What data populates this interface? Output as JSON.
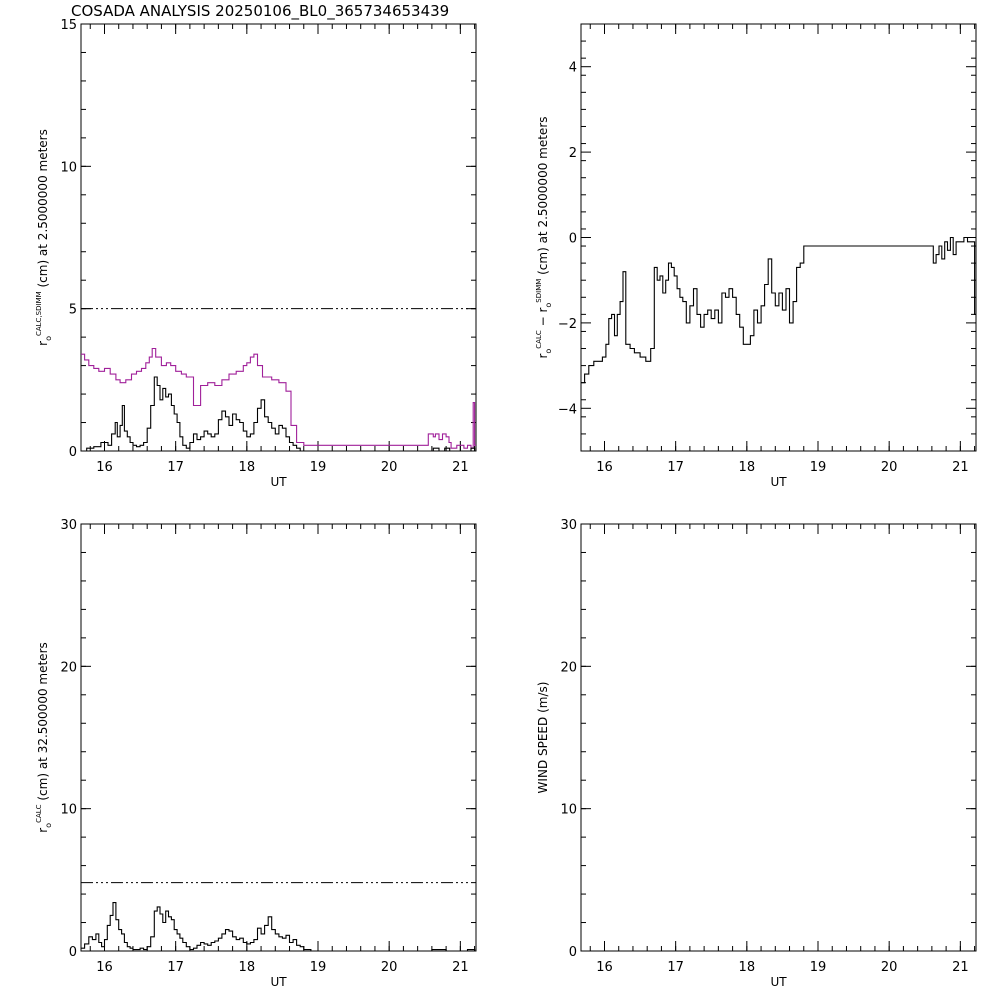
{
  "title": "COSADA ANALYSIS 20250106_BL0_365734653439",
  "colors": {
    "axis": "#000000",
    "series_calc": "#000000",
    "series_sdimm": "#a0209a"
  },
  "chart_data": [
    {
      "id": "p1",
      "type": "line",
      "xlabel": "UT",
      "ylabel": {
        "prefix": "r",
        "sub": "o",
        "sup": "CALC,SDIMM",
        "rest": " (cm)  at  2.5000000 meters"
      },
      "xlim": [
        15.67,
        21.22
      ],
      "ylim": [
        0,
        15
      ],
      "xticks": [
        "16",
        "17",
        "18",
        "19",
        "20",
        "21"
      ],
      "yticks": [
        "0",
        "5",
        "10",
        "15"
      ],
      "threshold": 5,
      "series": [
        {
          "color": "#a0209a",
          "step": true,
          "x": [
            15.67,
            15.72,
            15.78,
            15.85,
            15.92,
            16.0,
            16.08,
            16.16,
            16.22,
            16.3,
            16.38,
            16.45,
            16.52,
            16.58,
            16.63,
            16.67,
            16.72,
            16.8,
            16.87,
            16.93,
            17.0,
            17.08,
            17.15,
            17.25,
            17.35,
            17.45,
            17.55,
            17.65,
            17.75,
            17.85,
            17.95,
            18.0,
            18.05,
            18.1,
            18.15,
            18.22,
            18.35,
            18.45,
            18.55,
            18.62,
            18.7,
            18.8,
            19.0,
            20.0,
            20.55,
            20.62,
            20.65,
            20.7,
            20.75,
            20.8,
            20.84,
            20.87,
            20.95,
            21.05,
            21.1,
            21.15,
            21.18,
            21.2
          ],
          "y": [
            3.4,
            3.2,
            3.0,
            2.9,
            2.8,
            2.9,
            2.7,
            2.5,
            2.4,
            2.5,
            2.7,
            2.8,
            2.9,
            3.1,
            3.3,
            3.6,
            3.3,
            3.0,
            3.1,
            3.0,
            2.8,
            2.7,
            2.6,
            1.6,
            2.3,
            2.4,
            2.3,
            2.5,
            2.7,
            2.8,
            3.0,
            3.1,
            3.3,
            3.4,
            3.0,
            2.6,
            2.5,
            2.4,
            2.1,
            0.9,
            0.3,
            0.2,
            0.2,
            0.2,
            0.6,
            0.5,
            0.6,
            0.4,
            0.6,
            0.5,
            0.3,
            0.1,
            0.2,
            0.1,
            0.2,
            0.1,
            1.7,
            0.2
          ]
        },
        {
          "color": "#000000",
          "step": true,
          "x": [
            15.67,
            15.75,
            15.85,
            15.95,
            16.05,
            16.1,
            16.15,
            16.18,
            16.22,
            16.25,
            16.28,
            16.32,
            16.36,
            16.4,
            16.45,
            16.5,
            16.55,
            16.6,
            16.65,
            16.7,
            16.74,
            16.78,
            16.82,
            16.86,
            16.9,
            16.94,
            16.98,
            17.02,
            17.06,
            17.1,
            17.15,
            17.2,
            17.25,
            17.3,
            17.35,
            17.4,
            17.45,
            17.5,
            17.55,
            17.6,
            17.65,
            17.7,
            17.75,
            17.8,
            17.85,
            17.9,
            17.95,
            18.0,
            18.05,
            18.1,
            18.15,
            18.2,
            18.25,
            18.3,
            18.35,
            18.4,
            18.45,
            18.5,
            18.55,
            18.6,
            18.65,
            18.7,
            18.75,
            18.8,
            18.9,
            19.0,
            20.0,
            20.55,
            20.62,
            20.7,
            20.78,
            20.85,
            20.92,
            21.0,
            21.08,
            21.15,
            21.2
          ],
          "y": [
            0.0,
            0.1,
            0.15,
            0.3,
            0.2,
            0.6,
            1.0,
            0.5,
            0.9,
            1.6,
            0.7,
            0.5,
            0.3,
            0.2,
            0.15,
            0.2,
            0.3,
            0.8,
            1.6,
            2.6,
            2.3,
            1.8,
            2.2,
            1.9,
            2.0,
            1.6,
            1.3,
            1.0,
            0.5,
            0.2,
            0.1,
            0.3,
            0.6,
            0.4,
            0.5,
            0.7,
            0.6,
            0.5,
            0.6,
            1.1,
            1.4,
            1.2,
            0.9,
            1.3,
            1.1,
            1.0,
            0.7,
            0.5,
            0.6,
            1.0,
            1.5,
            1.8,
            1.2,
            1.0,
            0.8,
            0.6,
            0.9,
            0.8,
            0.5,
            0.3,
            0.2,
            0.1,
            0.0,
            0.0,
            0.0,
            0.0,
            0.0,
            0.0,
            0.1,
            0.0,
            0.1,
            0.0,
            0.0,
            0.0,
            0.0,
            0.1,
            0.0
          ]
        }
      ]
    },
    {
      "id": "p2",
      "type": "line",
      "xlabel": "UT",
      "ylabel": {
        "prefix": "r",
        "sub": "o",
        "sup": "CALC",
        "rest": "  − r",
        "sub2": "o",
        "sup2": "SDIMM",
        "rest2": " (cm) at 2.5000000 meters"
      },
      "xlim": [
        15.67,
        21.22
      ],
      "ylim": [
        -5,
        5
      ],
      "xticks": [
        "16",
        "17",
        "18",
        "19",
        "20",
        "21"
      ],
      "yticks": [
        "−4",
        "−2",
        "0",
        "2",
        "4"
      ],
      "ytick_values": [
        -4,
        -2,
        0,
        2,
        4
      ],
      "series": [
        {
          "color": "#000000",
          "step": true,
          "x": [
            15.67,
            15.72,
            15.78,
            15.85,
            15.92,
            15.97,
            16.02,
            16.06,
            16.1,
            16.14,
            16.18,
            16.22,
            16.26,
            16.3,
            16.36,
            16.42,
            16.5,
            16.58,
            16.65,
            16.7,
            16.74,
            16.78,
            16.82,
            16.86,
            16.9,
            16.94,
            16.98,
            17.02,
            17.06,
            17.1,
            17.15,
            17.2,
            17.25,
            17.3,
            17.35,
            17.4,
            17.45,
            17.5,
            17.55,
            17.6,
            17.65,
            17.7,
            17.75,
            17.8,
            17.85,
            17.9,
            17.95,
            18.0,
            18.05,
            18.1,
            18.15,
            18.2,
            18.25,
            18.3,
            18.35,
            18.4,
            18.45,
            18.5,
            18.55,
            18.6,
            18.65,
            18.7,
            18.75,
            18.8,
            18.9,
            19.0,
            20.0,
            20.3,
            20.55,
            20.62,
            20.66,
            20.7,
            20.74,
            20.78,
            20.82,
            20.86,
            20.9,
            20.94,
            21.0,
            21.05,
            21.1,
            21.15,
            21.2
          ],
          "y": [
            -3.4,
            -3.2,
            -3.0,
            -2.9,
            -2.9,
            -2.8,
            -2.5,
            -1.9,
            -1.8,
            -2.3,
            -1.8,
            -1.5,
            -0.8,
            -2.5,
            -2.6,
            -2.7,
            -2.8,
            -2.9,
            -2.6,
            -0.7,
            -1.0,
            -0.9,
            -1.3,
            -1.0,
            -0.6,
            -0.7,
            -0.9,
            -1.2,
            -1.4,
            -1.5,
            -2.0,
            -1.6,
            -1.2,
            -1.8,
            -2.1,
            -1.8,
            -1.7,
            -1.9,
            -1.7,
            -2.0,
            -1.3,
            -1.4,
            -1.2,
            -1.4,
            -1.8,
            -2.1,
            -2.5,
            -2.5,
            -2.3,
            -1.7,
            -2.0,
            -1.6,
            -1.1,
            -0.5,
            -1.3,
            -1.6,
            -1.3,
            -1.7,
            -1.2,
            -2.0,
            -1.5,
            -0.7,
            -0.6,
            -0.2,
            -0.2,
            -0.2,
            -0.2,
            -0.2,
            -0.2,
            -0.6,
            -0.4,
            -0.2,
            -0.5,
            -0.1,
            -0.3,
            0.0,
            -0.4,
            -0.1,
            -0.1,
            0.0,
            -0.1,
            -0.1,
            -1.8
          ]
        }
      ]
    },
    {
      "id": "p3",
      "type": "line",
      "xlabel": "UT",
      "ylabel": {
        "prefix": "r",
        "sub": "o",
        "sup": "CALC",
        "rest": " (cm) at 32.500000 meters"
      },
      "xlim": [
        15.67,
        21.22
      ],
      "ylim": [
        0,
        30
      ],
      "xticks": [
        "16",
        "17",
        "18",
        "19",
        "20",
        "21"
      ],
      "yticks": [
        "0",
        "10",
        "20",
        "30"
      ],
      "threshold": 4.8,
      "series": [
        {
          "color": "#000000",
          "step": true,
          "x": [
            15.67,
            15.72,
            15.78,
            15.83,
            15.88,
            15.92,
            15.96,
            16.0,
            16.04,
            16.08,
            16.12,
            16.16,
            16.2,
            16.24,
            16.28,
            16.32,
            16.36,
            16.4,
            16.45,
            16.5,
            16.55,
            16.6,
            16.65,
            16.7,
            16.74,
            16.78,
            16.82,
            16.86,
            16.9,
            16.94,
            16.98,
            17.02,
            17.06,
            17.1,
            17.15,
            17.2,
            17.25,
            17.3,
            17.35,
            17.4,
            17.45,
            17.5,
            17.55,
            17.6,
            17.65,
            17.7,
            17.75,
            17.8,
            17.85,
            17.9,
            17.95,
            18.0,
            18.05,
            18.1,
            18.15,
            18.2,
            18.25,
            18.3,
            18.35,
            18.4,
            18.45,
            18.5,
            18.55,
            18.6,
            18.65,
            18.7,
            18.75,
            18.8,
            18.9,
            19.0,
            20.0,
            20.6,
            20.7,
            20.8,
            21.0,
            21.1,
            21.2
          ],
          "y": [
            0.2,
            0.5,
            1.0,
            0.8,
            1.2,
            0.6,
            0.3,
            0.8,
            1.8,
            2.5,
            3.4,
            2.2,
            1.5,
            1.2,
            0.6,
            0.3,
            0.2,
            0.1,
            0.1,
            0.2,
            0.1,
            0.3,
            1.0,
            2.8,
            3.1,
            2.6,
            2.0,
            2.8,
            2.4,
            2.2,
            1.5,
            1.2,
            0.9,
            0.6,
            0.3,
            0.1,
            0.2,
            0.4,
            0.6,
            0.5,
            0.4,
            0.6,
            0.7,
            0.9,
            1.2,
            1.5,
            1.4,
            1.0,
            0.8,
            0.9,
            0.6,
            0.5,
            0.6,
            0.8,
            1.6,
            1.2,
            1.8,
            2.4,
            1.5,
            1.2,
            1.0,
            0.9,
            1.1,
            0.6,
            0.8,
            0.4,
            0.3,
            0.1,
            0.0,
            0.0,
            0.0,
            0.1,
            0.1,
            0.0,
            0.0,
            0.1,
            0.0
          ]
        }
      ]
    },
    {
      "id": "p4",
      "type": "line",
      "xlabel": "UT",
      "ylabel": {
        "prefix": "WIND SPEED (m/s)"
      },
      "xlim": [
        15.67,
        21.22
      ],
      "ylim": [
        0,
        30
      ],
      "xticks": [
        "16",
        "17",
        "18",
        "19",
        "20",
        "21"
      ],
      "yticks": [
        "0",
        "10",
        "20",
        "30"
      ],
      "series": []
    }
  ]
}
